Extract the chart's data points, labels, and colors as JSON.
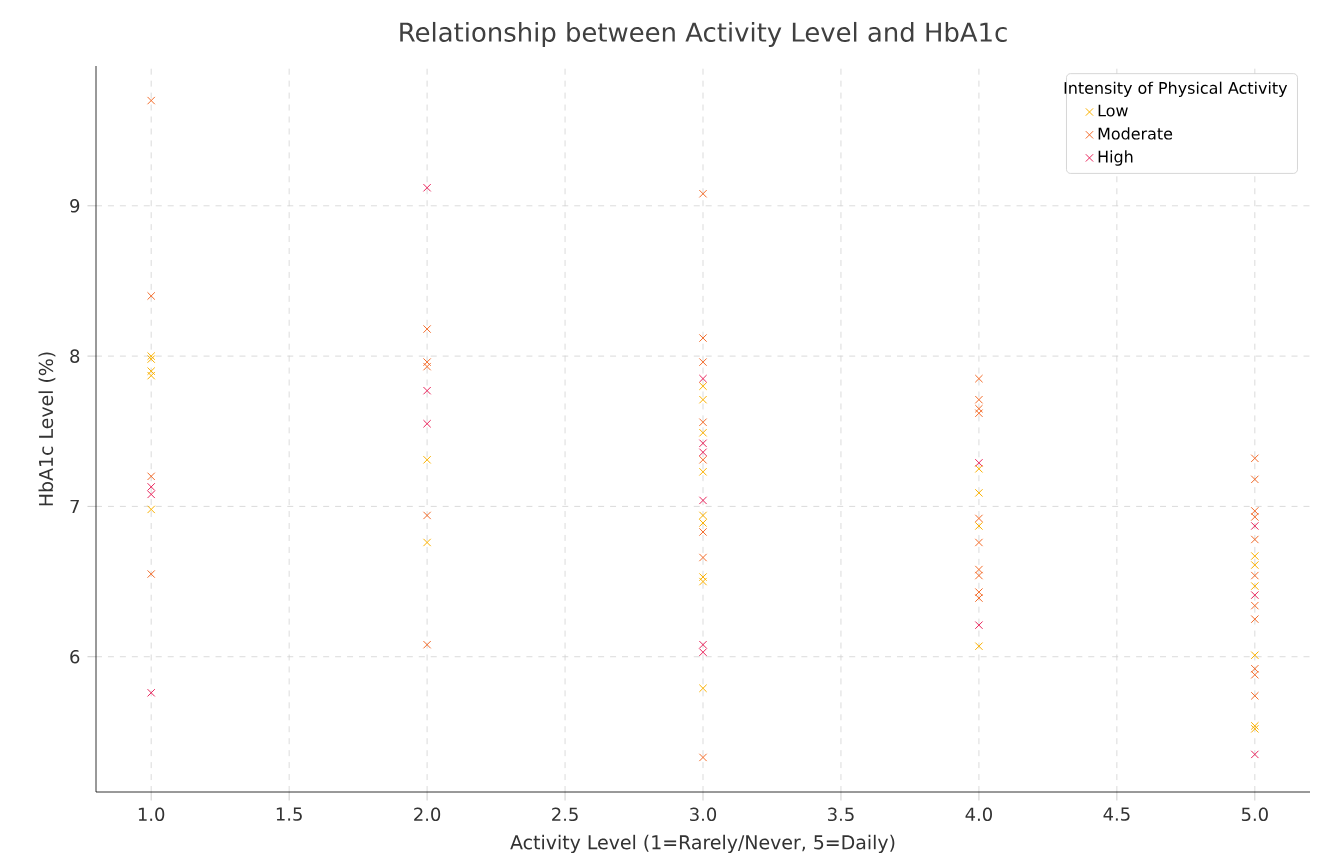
{
  "chart_data": {
    "type": "scatter",
    "title": "Relationship between Activity Level and HbA1c",
    "xlabel": "Activity Level (1=Rarely/Never, 5=Daily)",
    "ylabel": "HbA1c Level (%)",
    "legend_title": "Intensity of Physical Activity",
    "legend": "top right",
    "grid": true,
    "marker": "cross",
    "xlim": [
      0.8,
      5.2
    ],
    "ylim": [
      5.1,
      9.93
    ],
    "xticks": [
      {
        "value": 1,
        "label": "1.0"
      },
      {
        "value": 1.5,
        "label": "1.5"
      },
      {
        "value": 2,
        "label": "2.0"
      },
      {
        "value": 2.5,
        "label": "2.5"
      },
      {
        "value": 3,
        "label": "3.0"
      },
      {
        "value": 3.5,
        "label": "3.5"
      },
      {
        "value": 4,
        "label": "4.0"
      },
      {
        "value": 4.5,
        "label": "4.5"
      },
      {
        "value": 5,
        "label": "5.0"
      }
    ],
    "yticks": [
      6,
      7,
      8,
      9
    ],
    "series": [
      {
        "name": "Low",
        "color": "#f9b000",
        "x": [
          1,
          1,
          1,
          1,
          1,
          2,
          2,
          3,
          3,
          3,
          3,
          3,
          3,
          3,
          3,
          3,
          4,
          4,
          4,
          4,
          5,
          5,
          5,
          5,
          5,
          5
        ],
        "values": [
          8.0,
          7.98,
          7.9,
          7.87,
          6.98,
          7.31,
          6.76,
          7.8,
          7.71,
          7.49,
          7.23,
          6.94,
          6.89,
          6.53,
          6.5,
          5.79,
          7.25,
          7.09,
          6.87,
          6.07,
          6.67,
          6.61,
          6.47,
          6.01,
          5.54,
          5.52
        ]
      },
      {
        "name": "Moderate",
        "color": "#f26b2a",
        "x": [
          1,
          1,
          1,
          1,
          2,
          2,
          2,
          2,
          2,
          3,
          3,
          3,
          3,
          3,
          3,
          3,
          3,
          4,
          4,
          4,
          4,
          4,
          4,
          4,
          4,
          4,
          4,
          5,
          5,
          5,
          5,
          5,
          5,
          5,
          5,
          5,
          5,
          5
        ],
        "values": [
          9.7,
          8.4,
          7.2,
          6.55,
          8.18,
          7.96,
          7.93,
          6.94,
          6.08,
          9.08,
          8.12,
          7.96,
          7.56,
          7.31,
          6.83,
          6.66,
          5.33,
          7.85,
          7.71,
          7.65,
          7.62,
          6.92,
          6.76,
          6.58,
          6.54,
          6.43,
          6.39,
          7.32,
          7.18,
          6.97,
          6.93,
          6.78,
          6.54,
          6.34,
          6.25,
          5.92,
          5.88,
          5.74
        ]
      },
      {
        "name": "High",
        "color": "#e8265c",
        "x": [
          1,
          1,
          1,
          2,
          2,
          2,
          3,
          3,
          3,
          3,
          3,
          3,
          4,
          4,
          5,
          5,
          5
        ],
        "values": [
          7.13,
          7.08,
          5.76,
          9.12,
          7.77,
          7.55,
          7.85,
          7.42,
          7.36,
          7.04,
          6.08,
          6.03,
          7.29,
          6.21,
          6.87,
          6.41,
          5.35
        ]
      }
    ]
  }
}
